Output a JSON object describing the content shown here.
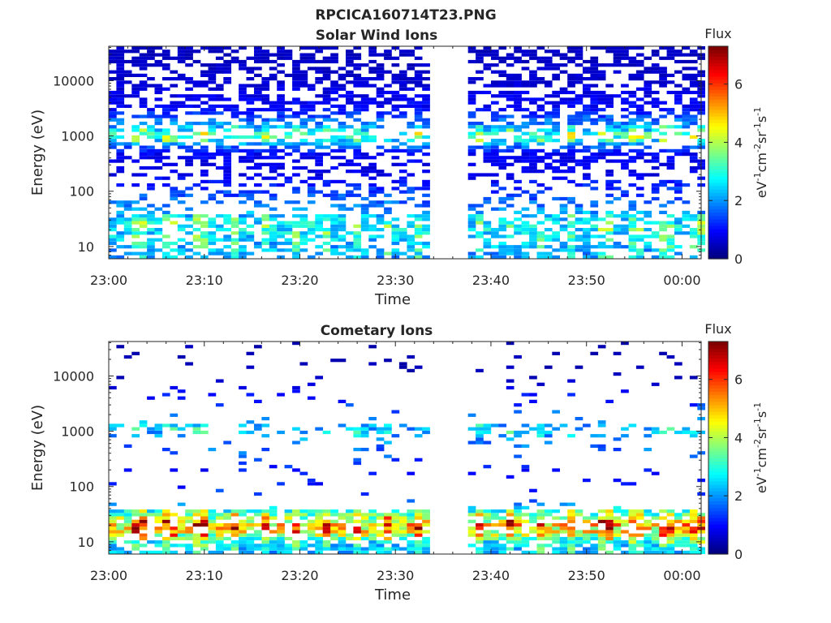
{
  "figure": {
    "title": "RPCICA160714T23.PNG"
  },
  "chart_data": [
    {
      "type": "heatmap",
      "title": "Solar Wind Ions",
      "xlabel": "Time",
      "ylabel": "Energy (eV)",
      "y_scale": "log",
      "ylim": [
        6,
        42000
      ],
      "xlim": [
        "23:00",
        "00:02"
      ],
      "x_ticks": [
        "23:00",
        "23:10",
        "23:20",
        "23:30",
        "23:40",
        "23:50",
        "00:00"
      ],
      "y_ticks": [
        10,
        100,
        1000,
        10000
      ],
      "y_tick_labels": [
        "10",
        "100",
        "1000",
        "10000"
      ],
      "data_gap": [
        "23:33",
        "23:37"
      ],
      "colorbar": {
        "title": "Flux",
        "label": "eV-1cm-2sr-1s-1",
        "ticks": [
          0,
          2,
          4,
          6
        ],
        "range": [
          0,
          7.3
        ],
        "colormap": "jet"
      },
      "flux_profile_by_energy_eV": [
        {
          "energy": 30000,
          "flux": 0.5
        },
        {
          "energy": 10000,
          "flux": 0.6
        },
        {
          "energy": 3000,
          "flux": 1.0
        },
        {
          "energy": 1500,
          "flux": 2.2
        },
        {
          "energy": 1000,
          "flux": 3.3
        },
        {
          "energy": 500,
          "flux": 0.9
        },
        {
          "energy": 200,
          "flux": 0.8
        },
        {
          "energy": 60,
          "flux": 1.8
        },
        {
          "energy": 25,
          "flux": 2.8
        },
        {
          "energy": 10,
          "flux": 2.3
        },
        {
          "energy": 7,
          "flux": 2.2
        }
      ]
    },
    {
      "type": "heatmap",
      "title": "Cometary Ions",
      "xlabel": "Time",
      "ylabel": "Energy (eV)",
      "y_scale": "log",
      "ylim": [
        6,
        42000
      ],
      "xlim": [
        "23:00",
        "00:02"
      ],
      "x_ticks": [
        "23:00",
        "23:10",
        "23:20",
        "23:30",
        "23:40",
        "23:50",
        "00:00"
      ],
      "y_ticks": [
        10,
        100,
        1000,
        10000
      ],
      "y_tick_labels": [
        "10",
        "100",
        "1000",
        "10000"
      ],
      "data_gap": [
        "23:33",
        "23:37"
      ],
      "colorbar": {
        "title": "Flux",
        "label": "eV-1cm-2sr-1s-1",
        "ticks": [
          0,
          2,
          4,
          6
        ],
        "range": [
          0,
          7.3
        ],
        "colormap": "jet"
      },
      "flux_profile_by_energy_eV": [
        {
          "energy": 10000,
          "flux": 0.4
        },
        {
          "energy": 1000,
          "flux": 2.3
        },
        {
          "energy": 150,
          "flux": 0.9
        },
        {
          "energy": 60,
          "flux": 1.6
        },
        {
          "energy": 30,
          "flux": 3.5
        },
        {
          "energy": 20,
          "flux": 5.2
        },
        {
          "energy": 14,
          "flux": 4.5
        },
        {
          "energy": 10,
          "flux": 2.8
        },
        {
          "energy": 7,
          "flux": 2.3
        }
      ]
    }
  ]
}
